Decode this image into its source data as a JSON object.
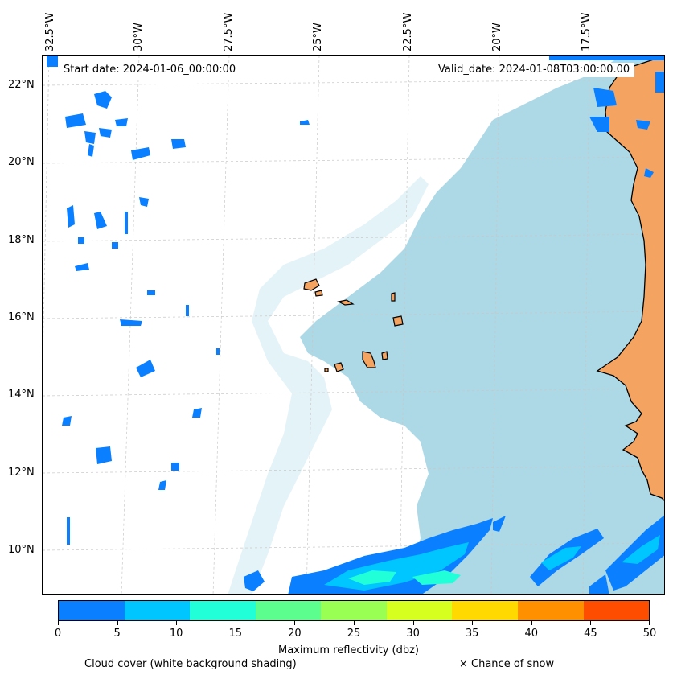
{
  "header": {
    "start_date": "Start date: 2024-01-06_00:00:00",
    "valid_date": "Valid_date: 2024-01-08T03:00:00.00"
  },
  "axes": {
    "lon_labels": [
      "32.5°W",
      "30°W",
      "27.5°W",
      "25°W",
      "22.5°W",
      "20°W",
      "17.5°W"
    ],
    "lat_labels": [
      "22°N",
      "20°N",
      "18°N",
      "16°N",
      "14°N",
      "12°N",
      "10°N"
    ]
  },
  "colorbar": {
    "label": "Maximum reflectivity (dbz)",
    "ticks": [
      "0",
      "5",
      "10",
      "15",
      "20",
      "25",
      "30",
      "35",
      "40",
      "45",
      "50"
    ],
    "colors": [
      "#0a7fff",
      "#00c6ff",
      "#21ffd8",
      "#5cff8e",
      "#99ff52",
      "#d6ff1f",
      "#ffd900",
      "#ff9000",
      "#ff4d00"
    ]
  },
  "legend": {
    "cloud_cover": "Cloud cover (white background shading)",
    "snow": "× Chance of snow"
  },
  "map": {
    "ocean_color": "#add8e6",
    "land_color": "#f4a460",
    "reflectivity_color": "#0a7fff"
  }
}
